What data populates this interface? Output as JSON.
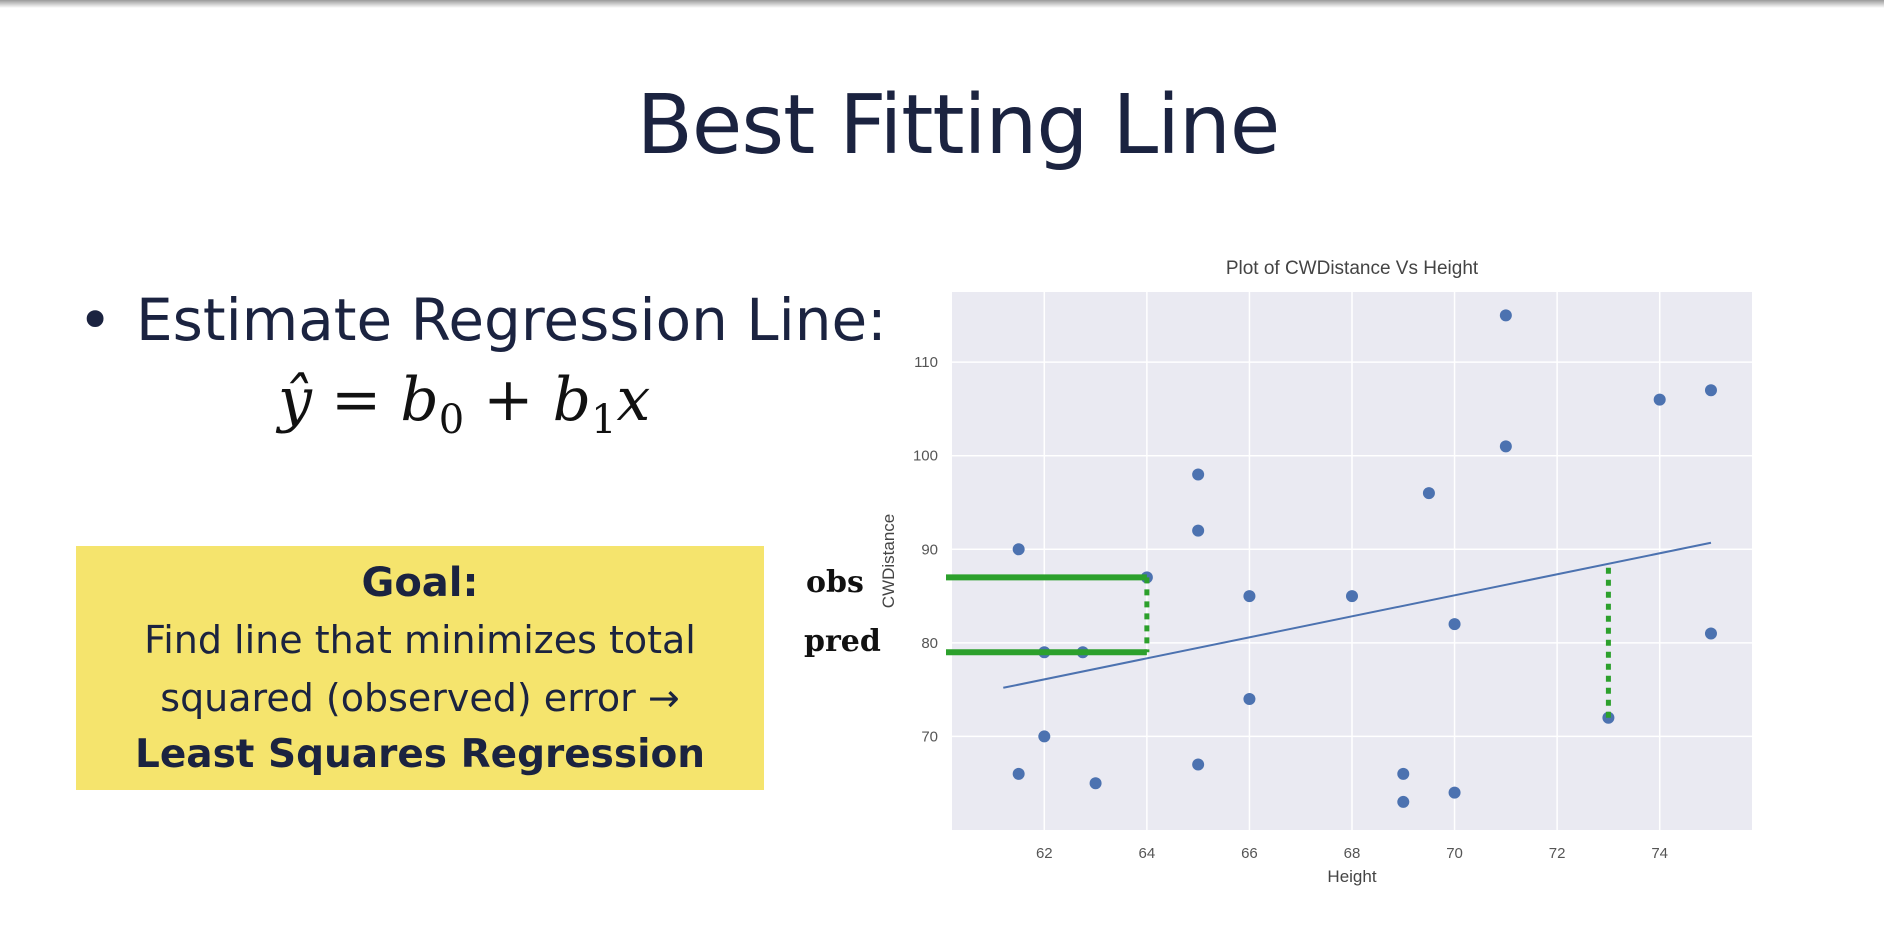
{
  "slide": {
    "title": "Best Fitting Line",
    "bullet": "Estimate Regression Line:",
    "equation": {
      "lhs": "ŷ",
      "eq": "=",
      "b0": "b",
      "b0_sub": "0",
      "plus": "+",
      "b1": "b",
      "b1_sub": "1",
      "x": "x"
    },
    "goal_box": {
      "title": "Goal:",
      "line1": "Find line that minimizes total",
      "line2": "squared (observed) error →",
      "line3": "Least Squares Regression",
      "background": "#f5e46d"
    },
    "annotations": {
      "obs": "obs",
      "pred": "pred",
      "color": "#2ca02c"
    }
  },
  "chart_data": {
    "type": "scatter",
    "title": "Plot of CWDistance Vs Height",
    "xlabel": "Height",
    "ylabel": "CWDistance",
    "xlim": [
      60.2,
      75.8
    ],
    "ylim": [
      60,
      117.5
    ],
    "xticks": [
      62,
      64,
      66,
      68,
      70,
      72,
      74
    ],
    "yticks": [
      70,
      80,
      90,
      100,
      110
    ],
    "grid": true,
    "background": "#eaeaf2",
    "point_color": "#4c72b0",
    "points": [
      {
        "x": 61.5,
        "y": 90
      },
      {
        "x": 61.5,
        "y": 66
      },
      {
        "x": 62,
        "y": 79
      },
      {
        "x": 62,
        "y": 70
      },
      {
        "x": 62.75,
        "y": 79
      },
      {
        "x": 63,
        "y": 65
      },
      {
        "x": 64,
        "y": 87
      },
      {
        "x": 65,
        "y": 98
      },
      {
        "x": 65,
        "y": 92
      },
      {
        "x": 65,
        "y": 67
      },
      {
        "x": 66,
        "y": 85
      },
      {
        "x": 66,
        "y": 74
      },
      {
        "x": 68,
        "y": 85
      },
      {
        "x": 69,
        "y": 66
      },
      {
        "x": 69,
        "y": 63
      },
      {
        "x": 69.5,
        "y": 96
      },
      {
        "x": 70,
        "y": 82
      },
      {
        "x": 70,
        "y": 64
      },
      {
        "x": 71,
        "y": 115
      },
      {
        "x": 71,
        "y": 101
      },
      {
        "x": 73,
        "y": 72
      },
      {
        "x": 74,
        "y": 106
      },
      {
        "x": 75,
        "y": 107
      },
      {
        "x": 75,
        "y": 81
      }
    ],
    "regression_line": {
      "x": [
        61.2,
        75
      ],
      "y": [
        75.2,
        90.7
      ]
    },
    "residuals": [
      {
        "x": 64,
        "y_obs": 87,
        "y_pred": 79
      },
      {
        "x": 73,
        "y_obs": 72,
        "y_pred": 88.5
      }
    ]
  }
}
